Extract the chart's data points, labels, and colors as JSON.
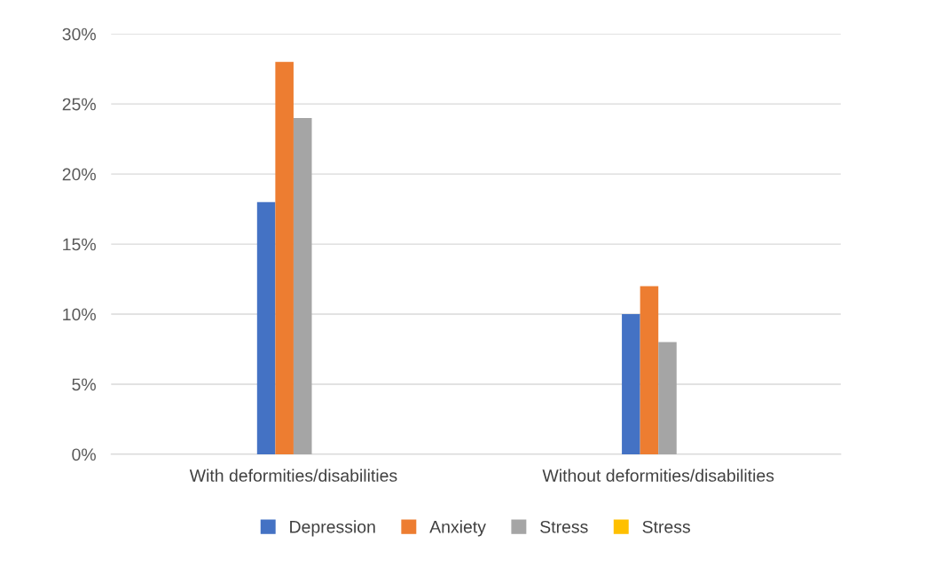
{
  "chart_data": {
    "type": "bar",
    "categories": [
      "With deformities/disabilities",
      "Without deformities/disabilities"
    ],
    "series": [
      {
        "name": "Depression",
        "color": "#4472c4",
        "values": [
          18,
          10
        ]
      },
      {
        "name": "Anxiety",
        "color": "#ed7d31",
        "values": [
          28,
          12
        ]
      },
      {
        "name": "Stress",
        "color": "#a5a5a5",
        "values": [
          24,
          8
        ]
      },
      {
        "name": "Stress",
        "color": "#ffc000",
        "values": [
          null,
          null
        ]
      }
    ],
    "ylim": [
      0,
      30
    ],
    "yticks": [
      {
        "value": 0,
        "label": "0%"
      },
      {
        "value": 5,
        "label": "5%"
      },
      {
        "value": 10,
        "label": "10%"
      },
      {
        "value": 15,
        "label": "15%"
      },
      {
        "value": 20,
        "label": "20%"
      },
      {
        "value": 25,
        "label": "25%"
      },
      {
        "value": 30,
        "label": "30%"
      }
    ],
    "grid": "y",
    "legend": "bottom"
  }
}
